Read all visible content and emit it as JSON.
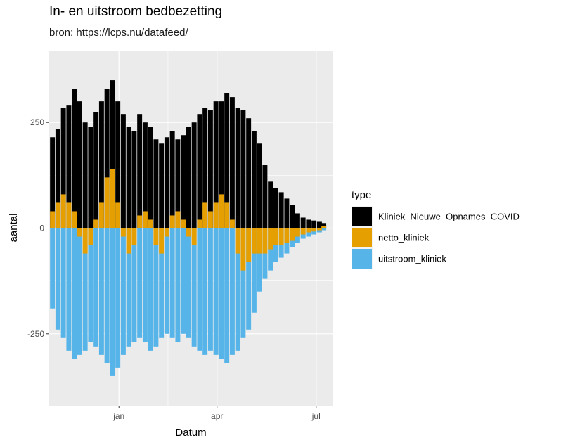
{
  "chart_data": {
    "type": "bar",
    "title": "In- en uitstroom bedbezetting",
    "subtitle": "bron: https://lcps.nu/datafeed/",
    "xlabel": "Datum",
    "ylabel": "aantal",
    "ylim": [
      -420,
      420
    ],
    "y_ticks": [
      {
        "value": 250,
        "label": "250"
      },
      {
        "value": 0,
        "label": "0"
      },
      {
        "value": -250,
        "label": "-250"
      }
    ],
    "x_range": [
      "2020-10-29",
      "2021-07-16"
    ],
    "x_ticks": [
      {
        "date": "2021-01-01",
        "label": "jan"
      },
      {
        "date": "2021-04-01",
        "label": "apr"
      },
      {
        "date": "2021-07-01",
        "label": "jul"
      }
    ],
    "x_dates": [
      "2020-11-01",
      "2020-11-06",
      "2020-11-11",
      "2020-11-16",
      "2020-11-21",
      "2020-11-26",
      "2020-12-01",
      "2020-12-06",
      "2020-12-11",
      "2020-12-16",
      "2020-12-21",
      "2020-12-26",
      "2020-12-31",
      "2021-01-05",
      "2021-01-10",
      "2021-01-15",
      "2021-01-20",
      "2021-01-25",
      "2021-01-30",
      "2021-02-04",
      "2021-02-09",
      "2021-02-14",
      "2021-02-19",
      "2021-02-24",
      "2021-03-01",
      "2021-03-06",
      "2021-03-11",
      "2021-03-16",
      "2021-03-21",
      "2021-03-26",
      "2021-03-31",
      "2021-04-05",
      "2021-04-10",
      "2021-04-15",
      "2021-04-20",
      "2021-04-25",
      "2021-04-30",
      "2021-05-05",
      "2021-05-10",
      "2021-05-15",
      "2021-05-20",
      "2021-05-25",
      "2021-05-30",
      "2021-06-04",
      "2021-06-09",
      "2021-06-14",
      "2021-06-19",
      "2021-06-24",
      "2021-06-29",
      "2021-07-04",
      "2021-07-08"
    ],
    "legend": {
      "title": "type",
      "position": "right"
    },
    "grid": true,
    "series": [
      {
        "name": "Kliniek_Nieuwe_Opnames_COVID",
        "color": "#000000",
        "values": [
          215,
          235,
          285,
          290,
          330,
          300,
          250,
          240,
          275,
          300,
          330,
          350,
          300,
          270,
          240,
          230,
          270,
          250,
          240,
          210,
          200,
          215,
          230,
          210,
          220,
          240,
          250,
          270,
          285,
          280,
          300,
          300,
          320,
          310,
          285,
          280,
          260,
          230,
          200,
          150,
          110,
          95,
          85,
          70,
          55,
          35,
          25,
          20,
          18,
          15,
          12
        ]
      },
      {
        "name": "netto_kliniek",
        "color": "#E69F00",
        "values": [
          40,
          60,
          80,
          60,
          40,
          -20,
          -60,
          -40,
          20,
          60,
          120,
          140,
          60,
          -20,
          -60,
          -40,
          30,
          40,
          20,
          -40,
          -60,
          -20,
          30,
          40,
          20,
          -20,
          -40,
          20,
          60,
          40,
          60,
          80,
          60,
          20,
          -60,
          -100,
          -80,
          -60,
          -60,
          -60,
          -50,
          -40,
          -40,
          -35,
          -30,
          -20,
          -15,
          -10,
          -8,
          -5,
          5
        ]
      },
      {
        "name": "uitstroom_kliniek",
        "color": "#56B4E9",
        "values": [
          -190,
          -240,
          -260,
          -290,
          -310,
          -300,
          -290,
          -270,
          -280,
          -300,
          -320,
          -350,
          -330,
          -300,
          -280,
          -270,
          -260,
          -270,
          -290,
          -280,
          -260,
          -250,
          -260,
          -270,
          -250,
          -260,
          -280,
          -290,
          -300,
          -290,
          -300,
          -310,
          -320,
          -300,
          -290,
          -260,
          -240,
          -200,
          -150,
          -120,
          -100,
          -80,
          -70,
          -60,
          -45,
          -35,
          -25,
          -20,
          -15,
          -10,
          -5
        ]
      }
    ]
  }
}
